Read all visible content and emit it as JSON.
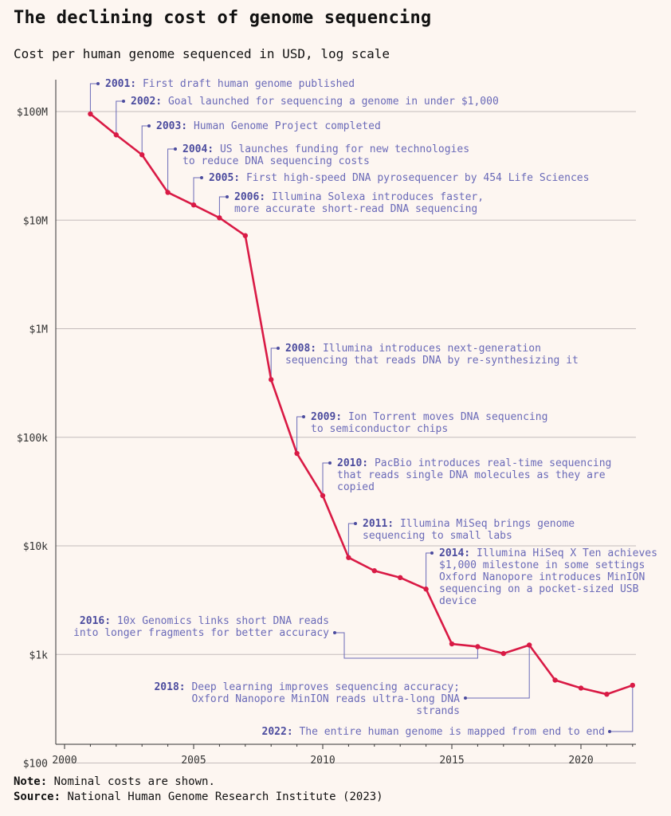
{
  "title": "The declining cost of genome sequencing",
  "subtitle": "Cost per human genome sequenced in USD, log scale",
  "note_label": "Note:",
  "note_text": "Nominal costs are shown.",
  "source_label": "Source:",
  "source_text": "National Human Genome Research Institute (2023)",
  "colors": {
    "line": "#d91a45",
    "annotation": "#6a6ab8",
    "annotation_year": "#4b4b9e",
    "grid": "#c4bcbc",
    "background": "#fdf6f1"
  },
  "chart_data": {
    "type": "line",
    "title": "The declining cost of genome sequencing",
    "subtitle": "Cost per human genome sequenced in USD, log scale",
    "y_scale": "log",
    "ylim": [
      60,
      200000000
    ],
    "xlim": [
      2000,
      2022
    ],
    "grid": "horizontal",
    "y_ticks": [
      {
        "value": 100,
        "label": "$100"
      },
      {
        "value": 1000,
        "label": "$1k"
      },
      {
        "value": 10000,
        "label": "$10k"
      },
      {
        "value": 100000,
        "label": "$100k"
      },
      {
        "value": 1000000,
        "label": "$1M"
      },
      {
        "value": 10000000,
        "label": "$10M"
      },
      {
        "value": 100000000,
        "label": "$100M"
      }
    ],
    "x_ticks": [
      {
        "value": 2000,
        "label": "2000"
      },
      {
        "value": 2005,
        "label": "2005"
      },
      {
        "value": 2010,
        "label": "2010"
      },
      {
        "value": 2015,
        "label": "2015"
      },
      {
        "value": 2020,
        "label": "2020"
      }
    ],
    "series": [
      {
        "x": [
          2001,
          2002,
          2003,
          2004,
          2005,
          2006,
          2007,
          2008,
          2009,
          2010,
          2011,
          2012,
          2013,
          2014,
          2015,
          2016,
          2017,
          2018,
          2019,
          2020,
          2021,
          2022
        ],
        "values": [
          95000000,
          61000000,
          40000000,
          18000000,
          13800000,
          10500000,
          7200000,
          340000,
          71000,
          29000,
          7800,
          5900,
          5100,
          4000,
          1250,
          1180,
          1020,
          1220,
          580,
          490,
          430,
          520
        ]
      }
    ],
    "annotations": [
      {
        "year": "2001:",
        "lines": [
          "First draft human genome published"
        ],
        "x": 2001
      },
      {
        "year": "2002:",
        "lines": [
          "Goal launched for sequencing a genome in under $1,000"
        ],
        "x": 2002
      },
      {
        "year": "2003:",
        "lines": [
          "Human Genome Project completed"
        ],
        "x": 2003
      },
      {
        "year": "2004:",
        "lines": [
          "US launches funding for new technologies",
          "to reduce DNA sequencing costs"
        ],
        "x": 2004
      },
      {
        "year": "2005:",
        "lines": [
          "First high-speed DNA pyrosequencer by 454 Life Sciences"
        ],
        "x": 2005
      },
      {
        "year": "2006:",
        "lines": [
          "Illumina Solexa introduces faster,",
          "more accurate short-read DNA sequencing"
        ],
        "x": 2006
      },
      {
        "year": "2008:",
        "lines": [
          "Illumina introduces next-generation",
          "sequencing that reads DNA by re-synthesizing it"
        ],
        "x": 2008
      },
      {
        "year": "2009:",
        "lines": [
          "Ion Torrent moves DNA sequencing",
          "to semiconductor chips"
        ],
        "x": 2009
      },
      {
        "year": "2010:",
        "lines": [
          "PacBio introduces real-time sequencing",
          "that reads single DNA molecules as they are",
          "copied"
        ],
        "x": 2010
      },
      {
        "year": "2011:",
        "lines": [
          "Illumina MiSeq brings genome",
          "sequencing to small labs"
        ],
        "x": 2011
      },
      {
        "year": "2014:",
        "lines": [
          "Illumina HiSeq X Ten achieves",
          "$1,000 milestone in some settings",
          "Oxford Nanopore introduces MinION",
          "sequencing on a pocket-sized USB",
          "device"
        ],
        "x": 2014
      },
      {
        "year": "2016:",
        "lines": [
          "10x Genomics links short DNA reads",
          "into longer fragments for better accuracy"
        ],
        "x": 2016
      },
      {
        "year": "2018:",
        "lines": [
          "Deep learning improves sequencing accuracy;",
          "Oxford Nanopore MinION reads ultra-long DNA",
          "strands"
        ],
        "x": 2018
      },
      {
        "year": "2022:",
        "lines": [
          "The entire human genome is mapped from end to end"
        ],
        "x": 2022
      }
    ]
  }
}
